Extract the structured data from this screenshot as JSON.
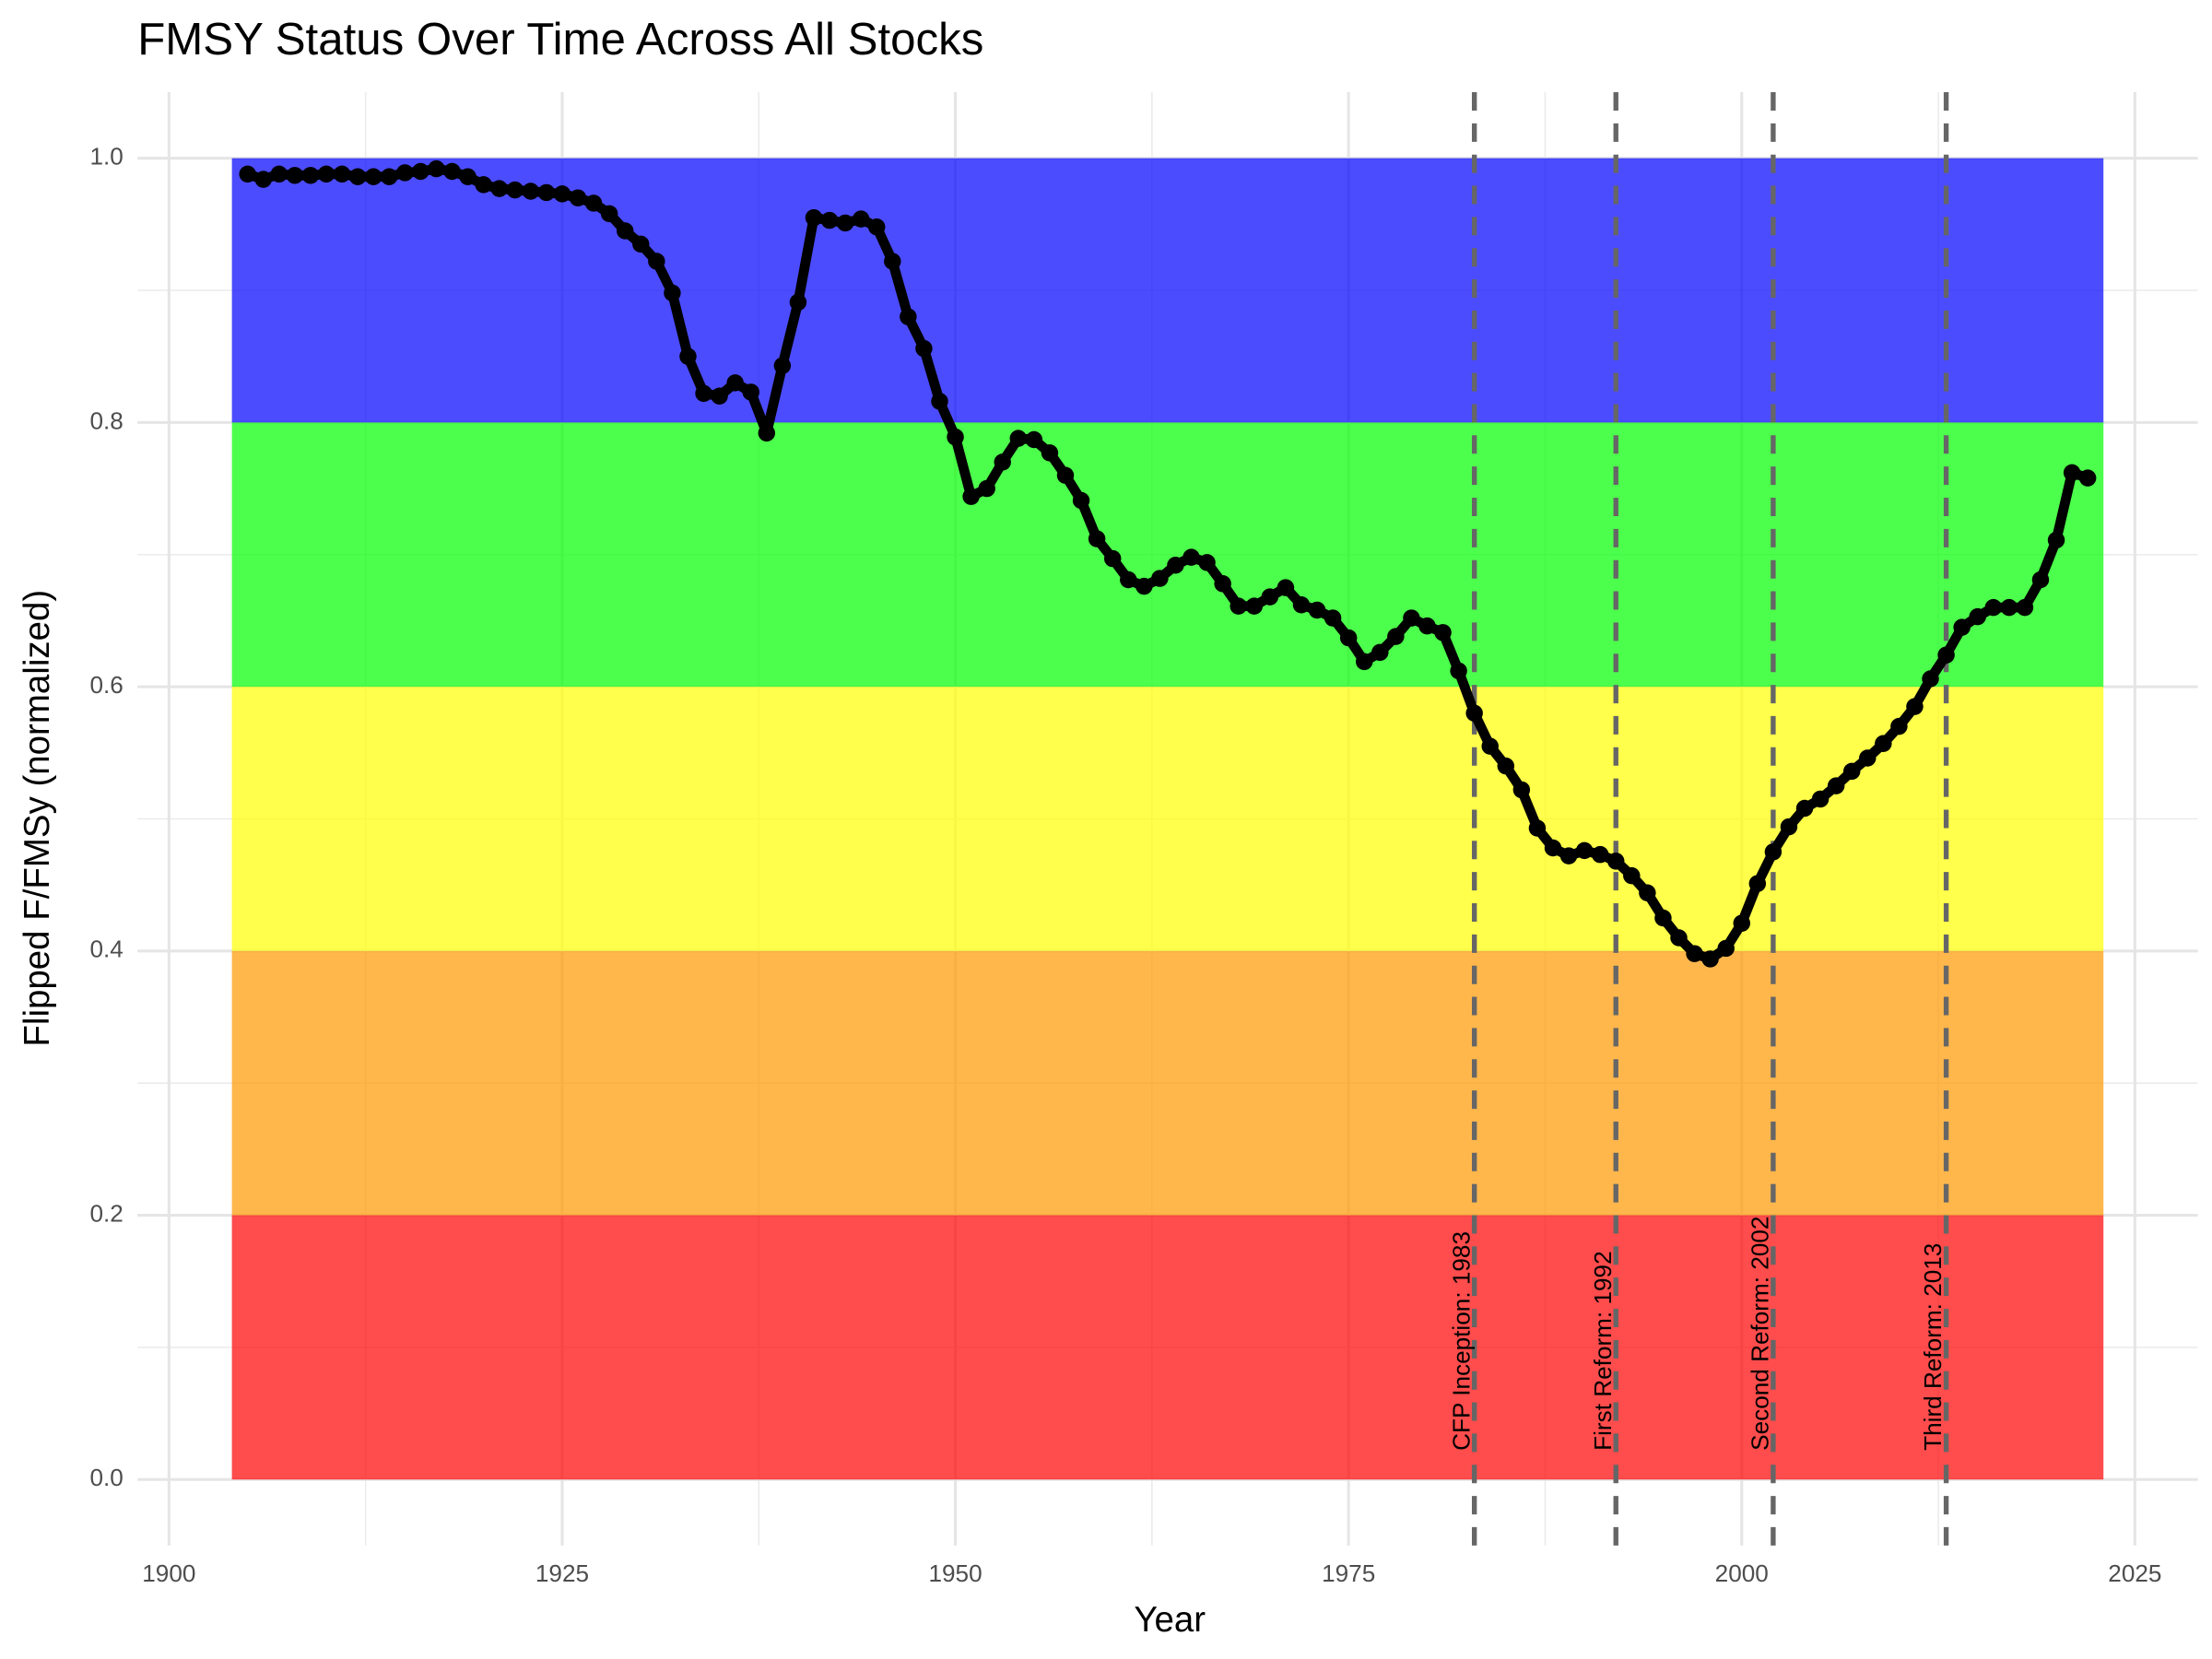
{
  "chart_data": {
    "type": "line",
    "title": "FMSY Status Over Time Across All Stocks",
    "x_label": "Year",
    "y_label": "Flipped F/FMSy (normalized)",
    "x": [
      1905,
      1906,
      1907,
      1908,
      1909,
      1910,
      1911,
      1912,
      1913,
      1914,
      1915,
      1916,
      1917,
      1918,
      1919,
      1920,
      1921,
      1922,
      1923,
      1924,
      1925,
      1926,
      1927,
      1928,
      1929,
      1930,
      1931,
      1932,
      1933,
      1934,
      1935,
      1936,
      1937,
      1938,
      1939,
      1940,
      1941,
      1942,
      1943,
      1944,
      1945,
      1946,
      1947,
      1948,
      1949,
      1950,
      1951,
      1952,
      1953,
      1954,
      1955,
      1956,
      1957,
      1958,
      1959,
      1960,
      1961,
      1962,
      1963,
      1964,
      1965,
      1966,
      1967,
      1968,
      1969,
      1970,
      1971,
      1972,
      1973,
      1974,
      1975,
      1976,
      1977,
      1978,
      1979,
      1980,
      1981,
      1982,
      1983,
      1984,
      1985,
      1986,
      1987,
      1988,
      1989,
      1990,
      1991,
      1992,
      1993,
      1994,
      1995,
      1996,
      1997,
      1998,
      1999,
      2000,
      2001,
      2002,
      2003,
      2004,
      2005,
      2006,
      2007,
      2008,
      2009,
      2010,
      2011,
      2012,
      2013,
      2014,
      2015,
      2016,
      2017,
      2018,
      2019,
      2020,
      2021,
      2022
    ],
    "values": [
      0.988,
      0.984,
      0.988,
      0.987,
      0.987,
      0.988,
      0.988,
      0.986,
      0.986,
      0.986,
      0.989,
      0.99,
      0.992,
      0.99,
      0.986,
      0.98,
      0.977,
      0.976,
      0.975,
      0.974,
      0.973,
      0.97,
      0.966,
      0.958,
      0.945,
      0.935,
      0.922,
      0.898,
      0.85,
      0.822,
      0.82,
      0.83,
      0.823,
      0.792,
      0.843,
      0.891,
      0.955,
      0.953,
      0.951,
      0.954,
      0.948,
      0.922,
      0.88,
      0.856,
      0.816,
      0.789,
      0.744,
      0.75,
      0.77,
      0.788,
      0.787,
      0.777,
      0.76,
      0.741,
      0.712,
      0.697,
      0.681,
      0.676,
      0.682,
      0.692,
      0.698,
      0.694,
      0.678,
      0.661,
      0.661,
      0.668,
      0.675,
      0.662,
      0.658,
      0.652,
      0.637,
      0.619,
      0.626,
      0.638,
      0.652,
      0.646,
      0.641,
      0.612,
      0.58,
      0.555,
      0.54,
      0.522,
      0.493,
      0.478,
      0.472,
      0.476,
      0.473,
      0.468,
      0.457,
      0.444,
      0.425,
      0.41,
      0.398,
      0.394,
      0.402,
      0.421,
      0.451,
      0.475,
      0.494,
      0.508,
      0.515,
      0.525,
      0.536,
      0.546,
      0.557,
      0.57,
      0.585,
      0.606,
      0.624,
      0.645,
      0.653,
      0.66,
      0.66,
      0.66,
      0.681,
      0.711,
      0.762,
      0.758
    ],
    "color": "#000000",
    "bands": [
      {
        "ymin": 0.0,
        "ymax": 0.2,
        "color": "#ff0000"
      },
      {
        "ymin": 0.2,
        "ymax": 0.4,
        "color": "#ff9900"
      },
      {
        "ymin": 0.4,
        "ymax": 0.6,
        "color": "#ffff00"
      },
      {
        "ymin": 0.6,
        "ymax": 0.8,
        "color": "#00ff00"
      },
      {
        "ymin": 0.8,
        "ymax": 1.0,
        "color": "#0000ff"
      }
    ],
    "band_opacity": 0.7,
    "annotations": [
      {
        "x": 1983,
        "label": "CFP Inception: 1983"
      },
      {
        "x": 1992,
        "label": "First Reform: 1992"
      },
      {
        "x": 2002,
        "label": "Second Reform: 2002"
      },
      {
        "x": 2013,
        "label": "Third Reform: 2013"
      }
    ],
    "xlim": [
      1898,
      2029
    ],
    "ylim": [
      -0.05,
      1.05
    ],
    "xticks": [
      1900,
      1925,
      1950,
      1975,
      2000,
      2025
    ],
    "yticks": [
      {
        "value": 0,
        "label": "0.0"
      },
      {
        "value": 0.2,
        "label": "0.2"
      },
      {
        "value": 0.4,
        "label": "0.4"
      },
      {
        "value": 0.6,
        "label": "0.6"
      },
      {
        "value": 0.8,
        "label": "0.8"
      },
      {
        "value": 1,
        "label": "1.0"
      }
    ],
    "minor_xticks": [
      1912.5,
      1937.5,
      1962.5,
      1987.5,
      2012.5
    ],
    "minor_yticks": [
      0.1,
      0.3,
      0.5,
      0.7,
      0.9
    ],
    "grid": true
  }
}
